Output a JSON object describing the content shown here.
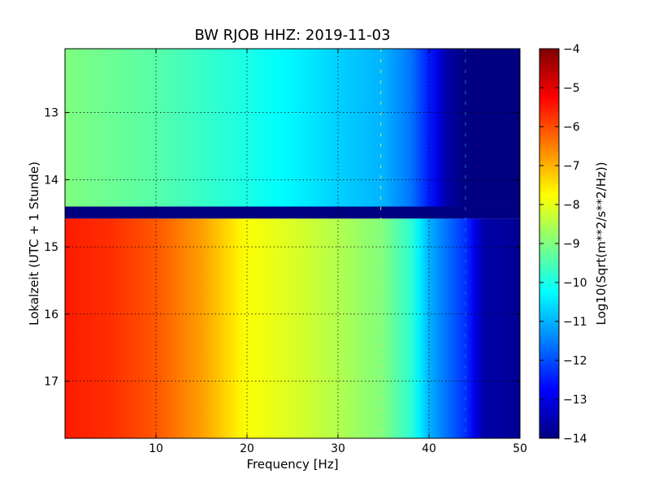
{
  "chart_data": {
    "type": "heatmap",
    "title": "BW RJOB HHZ: 2019-11-03",
    "xlabel": "Frequency [Hz]",
    "ylabel": "Lokalzeit (UTC + 1 Stunde)",
    "xlim": [
      0,
      50
    ],
    "ylim": [
      17.85,
      12.05
    ],
    "y_axis_inverted": true,
    "xticks": [
      10,
      20,
      30,
      40,
      50
    ],
    "yticks": [
      13,
      14,
      15,
      16,
      17
    ],
    "grid": true,
    "colormap": "jet",
    "colorbar": {
      "label": "Log10(Sqrt(m**2/s**2/Hz))",
      "range": [
        -14,
        -4
      ],
      "ticks": [
        -4,
        -5,
        -6,
        -7,
        -8,
        -9,
        -10,
        -11,
        -12,
        -13,
        -14
      ]
    },
    "segments": [
      {
        "name": "quiet period",
        "time_range": [
          12.05,
          14.4
        ],
        "profile": [
          {
            "freq": 0,
            "value": -9.0
          },
          {
            "freq": 10,
            "value": -9.4
          },
          {
            "freq": 20,
            "value": -10.0
          },
          {
            "freq": 30,
            "value": -10.7
          },
          {
            "freq": 35,
            "value": -11.0
          },
          {
            "freq": 38,
            "value": -11.6
          },
          {
            "freq": 40,
            "value": -12.5
          },
          {
            "freq": 42,
            "value": -13.6
          },
          {
            "freq": 44,
            "value": -14.0
          },
          {
            "freq": 50,
            "value": -14.0
          }
        ]
      },
      {
        "name": "data gap",
        "time_range": [
          14.4,
          14.58
        ],
        "profile": [
          {
            "freq": 0,
            "value": -14.0
          },
          {
            "freq": 50,
            "value": -14.0
          }
        ]
      },
      {
        "name": "noisy period",
        "time_range": [
          14.58,
          17.85
        ],
        "profile": [
          {
            "freq": 0,
            "value": -5.5
          },
          {
            "freq": 5,
            "value": -5.7
          },
          {
            "freq": 10,
            "value": -6.1
          },
          {
            "freq": 15,
            "value": -6.8
          },
          {
            "freq": 20,
            "value": -7.8
          },
          {
            "freq": 25,
            "value": -8.1
          },
          {
            "freq": 30,
            "value": -8.5
          },
          {
            "freq": 35,
            "value": -9.0
          },
          {
            "freq": 38,
            "value": -9.8
          },
          {
            "freq": 40,
            "value": -11.0
          },
          {
            "freq": 44,
            "value": -12.3
          },
          {
            "freq": 46,
            "value": -13.6
          },
          {
            "freq": 50,
            "value": -13.8
          }
        ]
      }
    ],
    "features": [
      {
        "name": "narrow line near 34.7 Hz",
        "freq": 34.7
      },
      {
        "name": "narrow line near 44 Hz",
        "freq": 44.0
      }
    ]
  }
}
